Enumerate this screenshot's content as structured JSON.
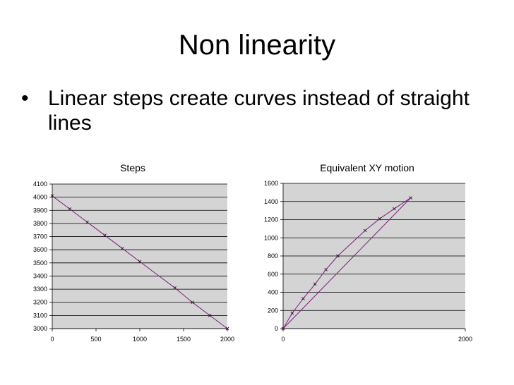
{
  "slide": {
    "title": "Non linearity",
    "bullets": [
      {
        "marker": "•",
        "text": "Linear steps create curves instead of straight lines"
      }
    ]
  },
  "colors": {
    "plot_area": "#d4d4d4",
    "gridline": "#000000",
    "series": "#7b1f7b",
    "marker": "#3a1a3a"
  },
  "chart_data": [
    {
      "type": "line",
      "title": "Steps",
      "xlabel": "",
      "ylabel": "",
      "xlim": [
        0,
        2000
      ],
      "ylim": [
        3000,
        4100
      ],
      "xticks": [
        0,
        500,
        1000,
        1500,
        2000
      ],
      "yticks": [
        3000,
        3100,
        3200,
        3300,
        3400,
        3500,
        3600,
        3700,
        3800,
        3900,
        4000,
        4100
      ],
      "grid": true,
      "legend": "none",
      "series": [
        {
          "x": [
            0,
            200,
            400,
            600,
            800,
            1000,
            1200,
            1400,
            1600,
            1800,
            2000
          ],
          "y": [
            4010,
            3910,
            3810,
            3710,
            3610,
            3510,
            3410,
            3310,
            3200,
            3100,
            3000
          ],
          "markers": [
            true,
            true,
            true,
            true,
            true,
            true,
            false,
            true,
            true,
            true,
            true
          ]
        }
      ]
    },
    {
      "type": "line",
      "title": "Equivalent XY motion",
      "xlabel": "",
      "ylabel": "",
      "xlim": [
        0,
        2000
      ],
      "ylim": [
        0,
        1600
      ],
      "xticks": [
        0,
        2000
      ],
      "yticks": [
        0,
        200,
        400,
        600,
        800,
        1000,
        1200,
        1400,
        1600
      ],
      "grid": true,
      "legend": "none",
      "series": [
        {
          "x": [
            0,
            100,
            220,
            350,
            470,
            600,
            900,
            1060,
            1220,
            1400
          ],
          "y": [
            0,
            170,
            330,
            490,
            650,
            800,
            1080,
            1210,
            1320,
            1440
          ],
          "markers": true
        },
        {
          "x": [
            0,
            1400
          ],
          "y": [
            0,
            1440
          ],
          "markers": false
        }
      ]
    }
  ]
}
